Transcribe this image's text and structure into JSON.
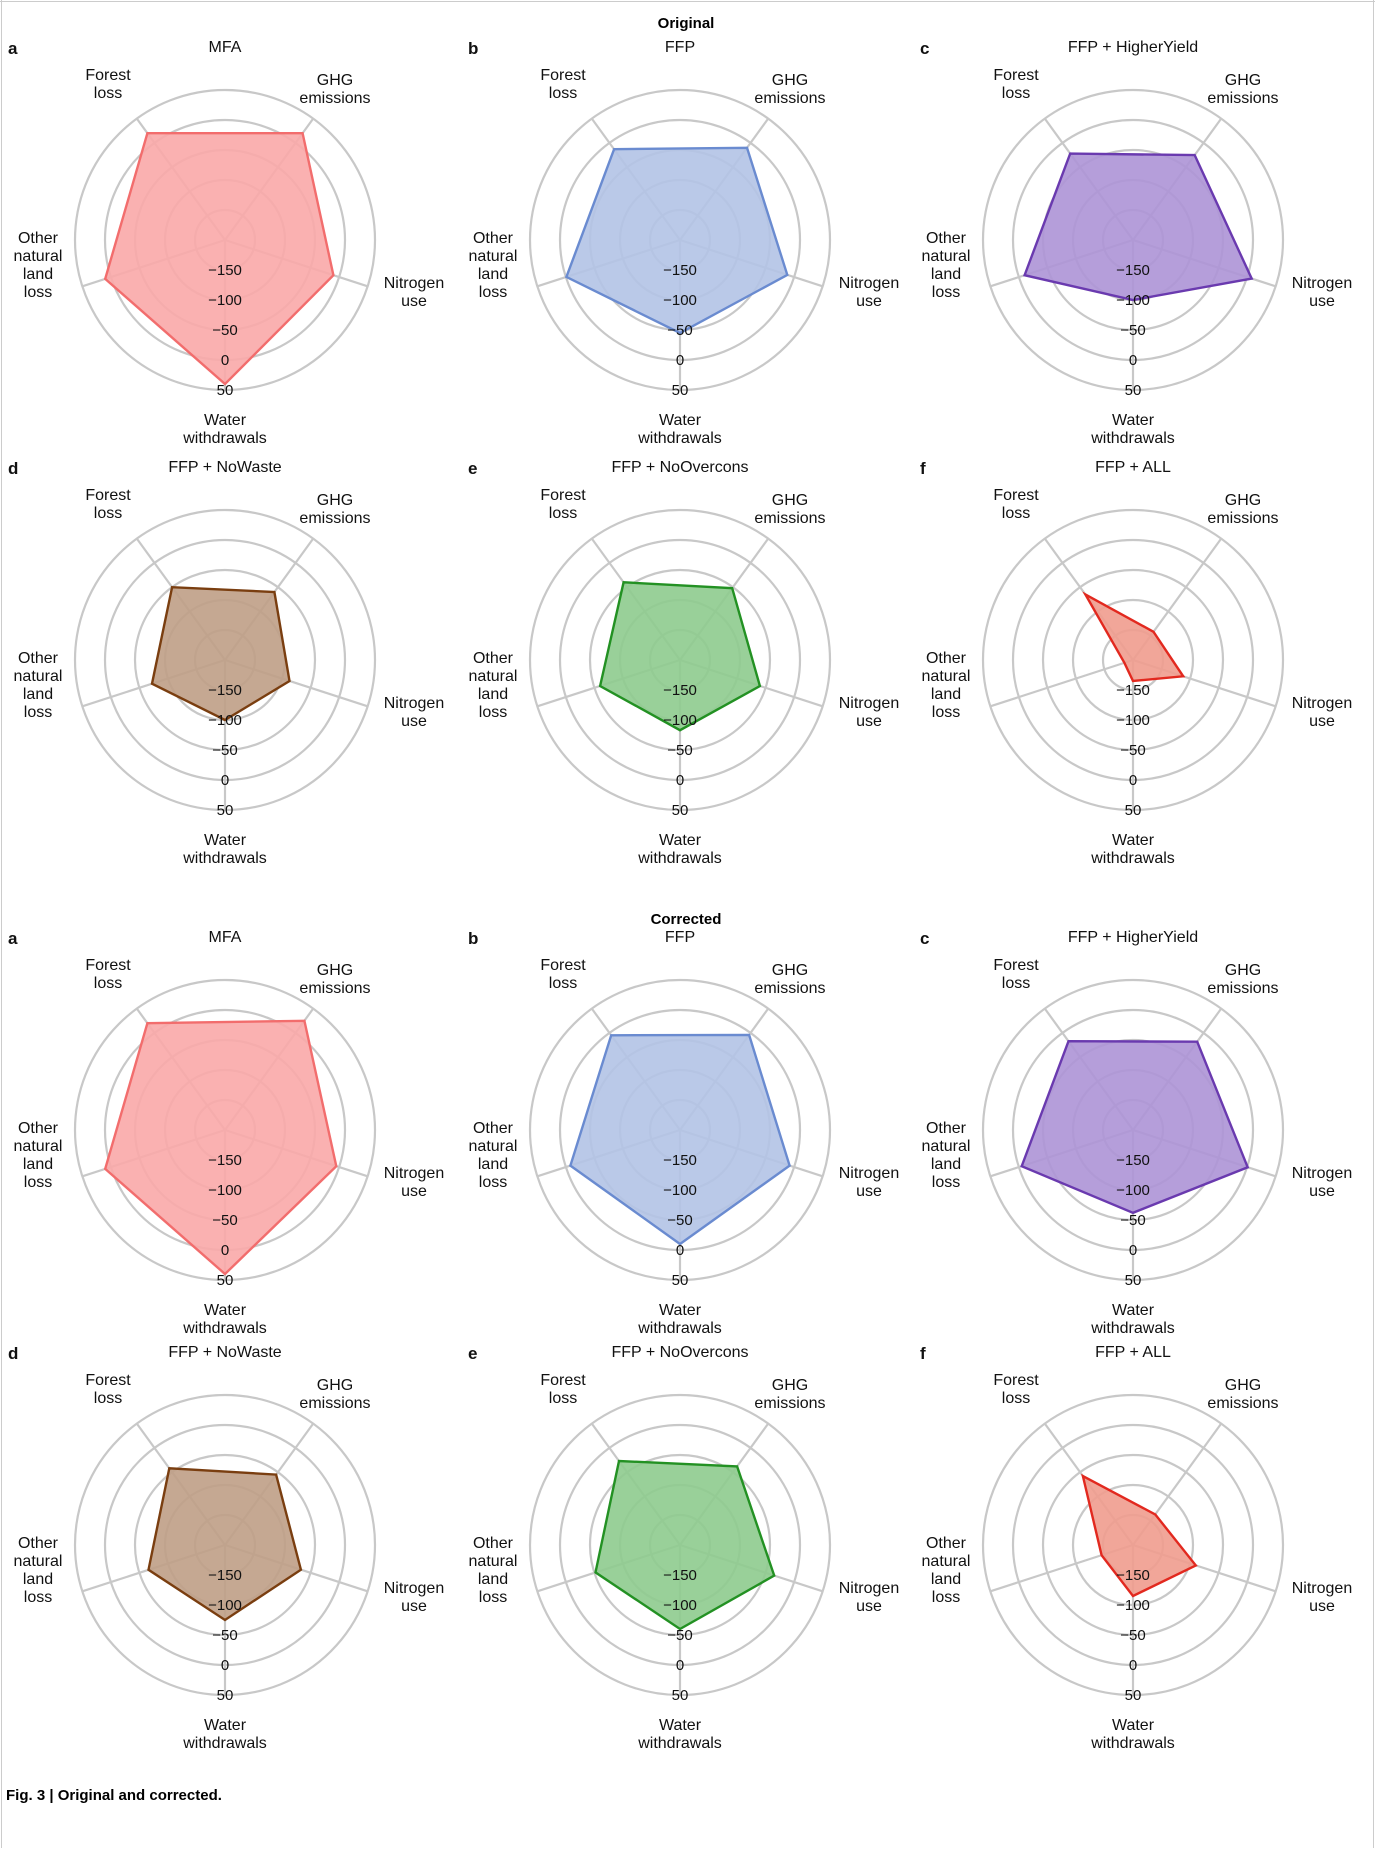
{
  "sections": [
    {
      "title": "Original"
    },
    {
      "title": "Corrected"
    }
  ],
  "caption": "Fig. 3 | Original and corrected.",
  "colors": {
    "grid": "#c8c8c8",
    "frame": "#cccccc",
    "series": {
      "MFA": {
        "stroke": "#f26d6d",
        "fill": "#f9a8a8"
      },
      "FFP": {
        "stroke": "#6a8bd0",
        "fill": "#b3c3e6"
      },
      "FFP + HigherYield": {
        "stroke": "#6a3aaf",
        "fill": "#ad93d6"
      },
      "FFP + NoWaste": {
        "stroke": "#7a3e10",
        "fill": "#bf9e86"
      },
      "FFP + NoOvercons": {
        "stroke": "#239123",
        "fill": "#8ecb8e"
      },
      "FFP + ALL": {
        "stroke": "#e2291f",
        "fill": "#f09c8e"
      }
    }
  },
  "chart_data": [
    {
      "type": "radar",
      "section": "Original",
      "panel": "a",
      "title": "MFA",
      "axes": [
        [
          "GHG",
          "emissions"
        ],
        [
          "Nitrogen",
          "use"
        ],
        [
          "Water",
          "withdrawals"
        ],
        [
          "Other",
          "natural",
          "land",
          "loss"
        ],
        [
          "Forest",
          "loss"
        ]
      ],
      "ticks": [
        "−150",
        "−100",
        "−50",
        "0",
        "50"
      ],
      "range": [
        -200,
        50
      ],
      "values": [
        20,
        -10,
        40,
        10,
        20
      ],
      "grid": "on"
    },
    {
      "type": "radar",
      "section": "Original",
      "panel": "b",
      "title": "FFP",
      "axes": [
        [
          "GHG",
          "emissions"
        ],
        [
          "Nitrogen",
          "use"
        ],
        [
          "Water",
          "withdrawals"
        ],
        [
          "Other",
          "natural",
          "land",
          "loss"
        ],
        [
          "Forest",
          "loss"
        ]
      ],
      "ticks": [
        "−150",
        "−100",
        "−50",
        "0",
        "50"
      ],
      "range": [
        -200,
        50
      ],
      "values": [
        -10,
        -12,
        -45,
        -1,
        -13
      ],
      "grid": "on"
    },
    {
      "type": "radar",
      "section": "Original",
      "panel": "c",
      "title": "FFP + HigherYield",
      "axes": [
        [
          "GHG",
          "emissions"
        ],
        [
          "Nitrogen",
          "use"
        ],
        [
          "Water",
          "withdrawals"
        ],
        [
          "Other",
          "natural",
          "land",
          "loss"
        ],
        [
          "Forest",
          "loss"
        ]
      ],
      "ticks": [
        "−150",
        "−100",
        "−50",
        "0",
        "50"
      ],
      "range": [
        -200,
        50
      ],
      "values": [
        -25,
        8,
        -100,
        -10,
        -22
      ],
      "grid": "on"
    },
    {
      "type": "radar",
      "section": "Original",
      "panel": "d",
      "title": "FFP + NoWaste",
      "axes": [
        [
          "GHG",
          "emissions"
        ],
        [
          "Nitrogen",
          "use"
        ],
        [
          "Water",
          "withdrawals"
        ],
        [
          "Other",
          "natural",
          "land",
          "loss"
        ],
        [
          "Forest",
          "loss"
        ]
      ],
      "ticks": [
        "−150",
        "−100",
        "−50",
        "0",
        "50"
      ],
      "range": [
        -200,
        50
      ],
      "values": [
        -60,
        -87,
        -100,
        -72,
        -50
      ],
      "grid": "on"
    },
    {
      "type": "radar",
      "section": "Original",
      "panel": "e",
      "title": "FFP + NoOvercons",
      "axes": [
        [
          "GHG",
          "emissions"
        ],
        [
          "Nitrogen",
          "use"
        ],
        [
          "Water",
          "withdrawals"
        ],
        [
          "Other",
          "natural",
          "land",
          "loss"
        ],
        [
          "Forest",
          "loss"
        ]
      ],
      "ticks": [
        "−150",
        "−100",
        "−50",
        "0",
        "50"
      ],
      "range": [
        -200,
        50
      ],
      "values": [
        -52,
        -60,
        -83,
        -60,
        -40
      ],
      "grid": "on"
    },
    {
      "type": "radar",
      "section": "Original",
      "panel": "f",
      "title": "FFP + ALL",
      "axes": [
        [
          "GHG",
          "emissions"
        ],
        [
          "Nitrogen",
          "use"
        ],
        [
          "Water",
          "withdrawals"
        ],
        [
          "Other",
          "natural",
          "land",
          "loss"
        ],
        [
          "Forest",
          "loss"
        ]
      ],
      "ticks": [
        "−150",
        "−100",
        "−50",
        "0",
        "50"
      ],
      "range": [
        -200,
        50
      ],
      "values": [
        -142,
        -112,
        -165,
        -185,
        -65
      ],
      "grid": "on"
    },
    {
      "type": "radar",
      "section": "Corrected",
      "panel": "a",
      "title": "MFA",
      "axes": [
        [
          "GHG",
          "emissions"
        ],
        [
          "Nitrogen",
          "use"
        ],
        [
          "Water",
          "withdrawals"
        ],
        [
          "Other",
          "natural",
          "land",
          "loss"
        ],
        [
          "Forest",
          "loss"
        ]
      ],
      "ticks": [
        "−150",
        "−100",
        "−50",
        "0",
        "50"
      ],
      "range": [
        -200,
        50
      ],
      "values": [
        25,
        -5,
        40,
        10,
        20
      ],
      "grid": "on"
    },
    {
      "type": "radar",
      "section": "Corrected",
      "panel": "b",
      "title": "FFP",
      "axes": [
        [
          "GHG",
          "emissions"
        ],
        [
          "Nitrogen",
          "use"
        ],
        [
          "Water",
          "withdrawals"
        ],
        [
          "Other",
          "natural",
          "land",
          "loss"
        ],
        [
          "Forest",
          "loss"
        ]
      ],
      "ticks": [
        "−150",
        "−100",
        "−50",
        "0",
        "50"
      ],
      "range": [
        -200,
        50
      ],
      "values": [
        -4,
        -8,
        -10,
        -8,
        -5
      ],
      "grid": "on"
    },
    {
      "type": "radar",
      "section": "Corrected",
      "panel": "c",
      "title": "FFP + HigherYield",
      "axes": [
        [
          "GHG",
          "emissions"
        ],
        [
          "Nitrogen",
          "use"
        ],
        [
          "Water",
          "withdrawals"
        ],
        [
          "Other",
          "natural",
          "land",
          "loss"
        ],
        [
          "Forest",
          "loss"
        ]
      ],
      "ticks": [
        "−150",
        "−100",
        "−50",
        "0",
        "50"
      ],
      "range": [
        -200,
        50
      ],
      "values": [
        -18,
        1,
        -62,
        -5,
        -17
      ],
      "grid": "on"
    },
    {
      "type": "radar",
      "section": "Corrected",
      "panel": "d",
      "title": "FFP + NoWaste",
      "axes": [
        [
          "GHG",
          "emissions"
        ],
        [
          "Nitrogen",
          "use"
        ],
        [
          "Water",
          "withdrawals"
        ],
        [
          "Other",
          "natural",
          "land",
          "loss"
        ],
        [
          "Forest",
          "loss"
        ]
      ],
      "ticks": [
        "−150",
        "−100",
        "−50",
        "0",
        "50"
      ],
      "range": [
        -200,
        50
      ],
      "values": [
        -55,
        -67,
        -75,
        -66,
        -42
      ],
      "grid": "on"
    },
    {
      "type": "radar",
      "section": "Corrected",
      "panel": "e",
      "title": "FFP + NoOvercons",
      "axes": [
        [
          "GHG",
          "emissions"
        ],
        [
          "Nitrogen",
          "use"
        ],
        [
          "Water",
          "withdrawals"
        ],
        [
          "Other",
          "natural",
          "land",
          "loss"
        ],
        [
          "Forest",
          "loss"
        ]
      ],
      "ticks": [
        "−150",
        "−100",
        "−50",
        "0",
        "50"
      ],
      "range": [
        -200,
        50
      ],
      "values": [
        -38,
        -35,
        -60,
        -52,
        -27
      ],
      "grid": "on"
    },
    {
      "type": "radar",
      "section": "Corrected",
      "panel": "f",
      "title": "FFP + ALL",
      "axes": [
        [
          "GHG",
          "emissions"
        ],
        [
          "Nitrogen",
          "use"
        ],
        [
          "Water",
          "withdrawals"
        ],
        [
          "Other",
          "natural",
          "land",
          "loss"
        ],
        [
          "Forest",
          "loss"
        ]
      ],
      "ticks": [
        "−150",
        "−100",
        "−50",
        "0",
        "50"
      ],
      "range": [
        -200,
        50
      ],
      "values": [
        -137,
        -90,
        -115,
        -145,
        -58
      ],
      "grid": "on"
    }
  ]
}
